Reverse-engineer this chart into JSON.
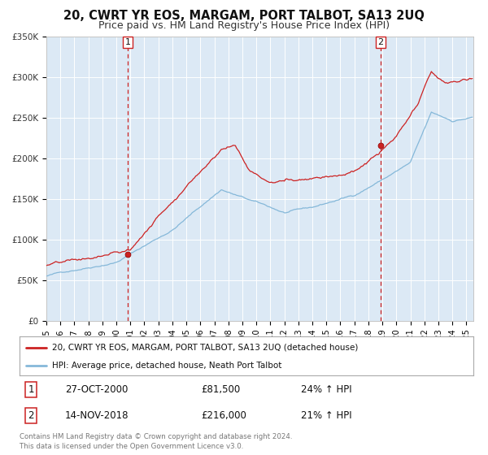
{
  "title": "20, CWRT YR EOS, MARGAM, PORT TALBOT, SA13 2UQ",
  "subtitle": "Price paid vs. HM Land Registry's House Price Index (HPI)",
  "ylim": [
    0,
    350000
  ],
  "xlim_start": 1995.0,
  "xlim_end": 2025.5,
  "background_color": "#ffffff",
  "plot_bg_color": "#dce9f5",
  "grid_color": "#ffffff",
  "red_line_color": "#cc2222",
  "blue_line_color": "#85b8d9",
  "marker1_date": 2000.82,
  "marker1_value": 81500,
  "marker2_date": 2018.87,
  "marker2_value": 216000,
  "vline_color": "#cc2222",
  "legend_label_red": "20, CWRT YR EOS, MARGAM, PORT TALBOT, SA13 2UQ (detached house)",
  "legend_label_blue": "HPI: Average price, detached house, Neath Port Talbot",
  "annotation1_num": "1",
  "annotation1_date": "27-OCT-2000",
  "annotation1_price": "£81,500",
  "annotation1_hpi": "24% ↑ HPI",
  "annotation2_num": "2",
  "annotation2_date": "14-NOV-2018",
  "annotation2_price": "£216,000",
  "annotation2_hpi": "21% ↑ HPI",
  "footer": "Contains HM Land Registry data © Crown copyright and database right 2024.\nThis data is licensed under the Open Government Licence v3.0.",
  "title_fontsize": 10.5,
  "subtitle_fontsize": 9,
  "ytick_labels": [
    "£0",
    "£50K",
    "£100K",
    "£150K",
    "£200K",
    "£250K",
    "£300K",
    "£350K"
  ],
  "ytick_values": [
    0,
    50000,
    100000,
    150000,
    200000,
    250000,
    300000,
    350000
  ]
}
